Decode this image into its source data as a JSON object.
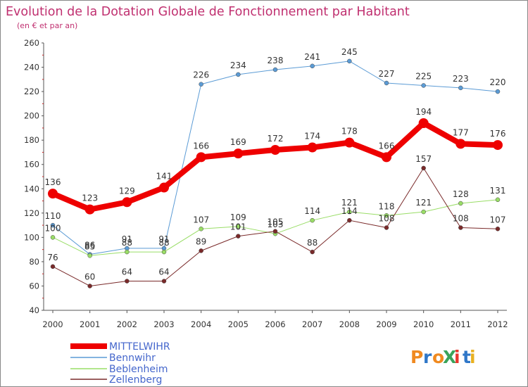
{
  "chart_data": {
    "type": "line",
    "title": "Evolution de la Dotation Globale de Fonctionnement par Habitant",
    "subtitle": "(en € et par an)",
    "x": [
      "2000",
      "2001",
      "2002",
      "2003",
      "2004",
      "2005",
      "2006",
      "2007",
      "2008",
      "2009",
      "2010",
      "2011",
      "2012"
    ],
    "ylim": [
      40,
      260
    ],
    "yticks": [
      40,
      60,
      80,
      100,
      120,
      140,
      160,
      180,
      200,
      220,
      240,
      260
    ],
    "grid": false,
    "legend_position": "bottom-left",
    "series": [
      {
        "name": "MITTELWIHR",
        "color": "#ee0000",
        "values": [
          136,
          123,
          129,
          141,
          166,
          169,
          172,
          174,
          178,
          166,
          194,
          177,
          176
        ]
      },
      {
        "name": "Bennwihr",
        "color": "#5b9bd5",
        "values": [
          110,
          86,
          91,
          91,
          226,
          234,
          238,
          241,
          245,
          227,
          225,
          223,
          220
        ]
      },
      {
        "name": "Beblenheim",
        "color": "#99dd66",
        "values": [
          100,
          85,
          88,
          88,
          107,
          109,
          103,
          114,
          121,
          118,
          121,
          128,
          131
        ]
      },
      {
        "name": "Zellenberg",
        "color": "#7a2a2a",
        "values": [
          76,
          60,
          64,
          64,
          89,
          101,
          105,
          88,
          114,
          108,
          157,
          108,
          107
        ]
      }
    ]
  },
  "branding": {
    "logo_text": "ProXiti"
  },
  "colors": {
    "title": "#c03070",
    "axis_text": "#333333",
    "legend_text": "#4466cc",
    "background": "#ffffff"
  }
}
